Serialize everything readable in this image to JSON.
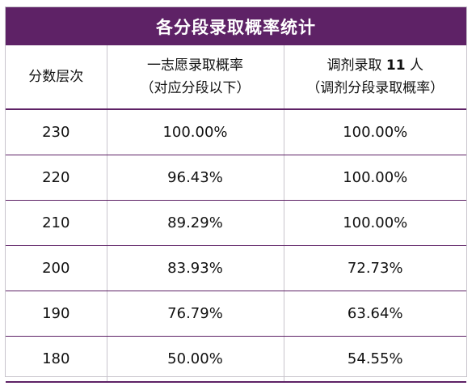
{
  "title": "各分段录取概率统计",
  "headers": {
    "col1": "分数层次",
    "col2_line1": "一志愿录取概率",
    "col2_line2": "（对应分段以下）",
    "col3_prefix": "调剂录取 ",
    "col3_number": "11",
    "col3_suffix": " 人",
    "col3_line2": "（调剂分段录取概率）"
  },
  "rows": [
    {
      "score": "230",
      "first_choice": "100.00%",
      "adjusted": "100.00%"
    },
    {
      "score": "220",
      "first_choice": "96.43%",
      "adjusted": "100.00%"
    },
    {
      "score": "210",
      "first_choice": "89.29%",
      "adjusted": "100.00%"
    },
    {
      "score": "200",
      "first_choice": "83.93%",
      "adjusted": "72.73%"
    },
    {
      "score": "190",
      "first_choice": "76.79%",
      "adjusted": "63.64%"
    },
    {
      "score": "180",
      "first_choice": "50.00%",
      "adjusted": "54.55%"
    }
  ],
  "colors": {
    "header_bg": "#5e2266",
    "header_text": "#ffffff",
    "rule": "#5e2266"
  }
}
